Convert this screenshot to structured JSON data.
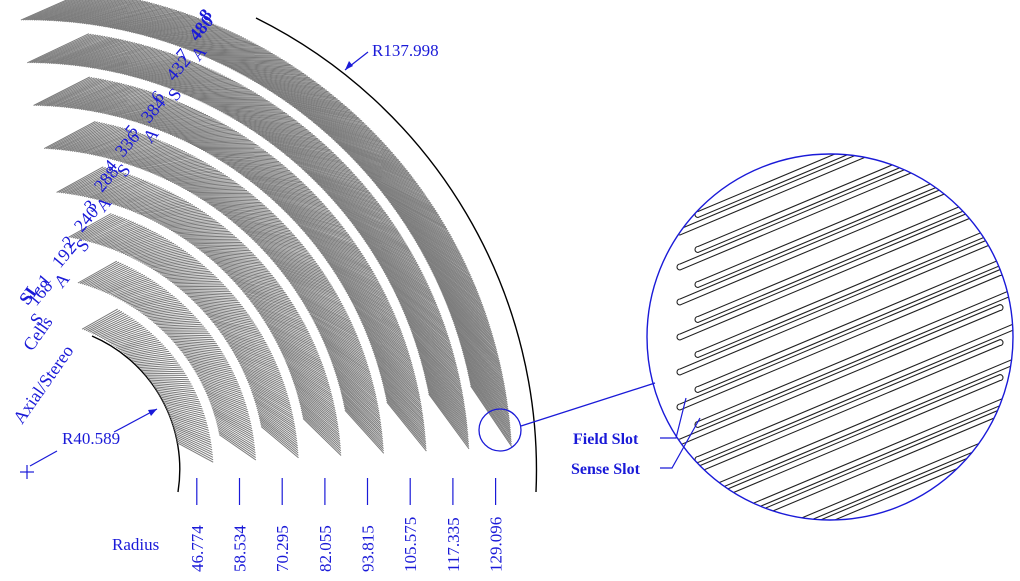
{
  "outer_radius_label": "R137.998",
  "inner_radius_label": "R40.589",
  "header_labels": {
    "superlayer": "SL",
    "cells": "Cells",
    "axial_stereo": "Axial/Stereo"
  },
  "superlayers": [
    {
      "sl": "1",
      "cells": "168",
      "type": "S"
    },
    {
      "sl": "2",
      "cells": "192",
      "type": "A"
    },
    {
      "sl": "3",
      "cells": "240",
      "type": "S"
    },
    {
      "sl": "4",
      "cells": "288",
      "type": "A"
    },
    {
      "sl": "5",
      "cells": "336",
      "type": "S"
    },
    {
      "sl": "6",
      "cells": "384",
      "type": "A"
    },
    {
      "sl": "7",
      "cells": "432",
      "type": "S"
    },
    {
      "sl": "8",
      "cells": "480",
      "type": "A"
    }
  ],
  "radius_label": "Radius",
  "radii": [
    "46.774",
    "58.534",
    "70.295",
    "82.055",
    "93.815",
    "105.575",
    "117.335",
    "129.096"
  ],
  "field_slot_label": "Field Slot",
  "sense_slot_label": "Sense Slot",
  "colors": {
    "annotation": "#1a1ad8",
    "slots": "#7a7a7a",
    "outline": "#000000"
  }
}
